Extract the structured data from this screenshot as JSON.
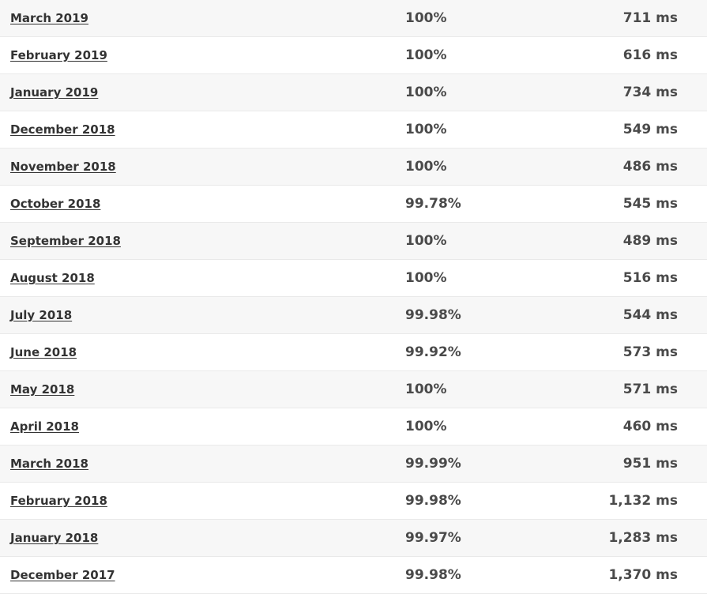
{
  "rows": [
    {
      "month": "March 2019",
      "uptime": "100%",
      "response": "711 ms"
    },
    {
      "month": "February 2019",
      "uptime": "100%",
      "response": "616 ms"
    },
    {
      "month": "January 2019",
      "uptime": "100%",
      "response": "734 ms"
    },
    {
      "month": "December 2018",
      "uptime": "100%",
      "response": "549 ms"
    },
    {
      "month": "November 2018",
      "uptime": "100%",
      "response": "486 ms"
    },
    {
      "month": "October 2018",
      "uptime": "99.78%",
      "response": "545 ms"
    },
    {
      "month": "September 2018",
      "uptime": "100%",
      "response": "489 ms"
    },
    {
      "month": "August 2018",
      "uptime": "100%",
      "response": "516 ms"
    },
    {
      "month": "July 2018",
      "uptime": "99.98%",
      "response": "544 ms"
    },
    {
      "month": "June 2018",
      "uptime": "99.92%",
      "response": "573 ms"
    },
    {
      "month": "May 2018",
      "uptime": "100%",
      "response": "571 ms"
    },
    {
      "month": "April 2018",
      "uptime": "100%",
      "response": "460 ms"
    },
    {
      "month": "March 2018",
      "uptime": "99.99%",
      "response": "951 ms"
    },
    {
      "month": "February 2018",
      "uptime": "99.98%",
      "response": "1,132 ms"
    },
    {
      "month": "January 2018",
      "uptime": "99.97%",
      "response": "1,283 ms"
    },
    {
      "month": "December 2017",
      "uptime": "99.98%",
      "response": "1,370 ms"
    }
  ]
}
